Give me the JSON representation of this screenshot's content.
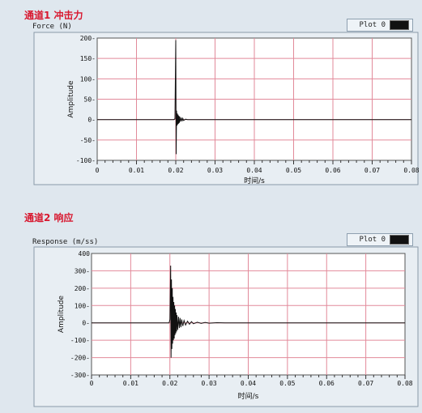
{
  "colors": {
    "grid": "#e28a9a",
    "plot_bg": "#ffffff",
    "trace": "#111111",
    "title": "#d8182f"
  },
  "chart_data": [
    {
      "type": "line",
      "channel_title": "通道1  冲击力",
      "plot_name": "Force (N)",
      "legend_label": "Plot 0",
      "xlabel": "时间/s",
      "ylabel": "Amplitude",
      "xlim": [
        0,
        0.08
      ],
      "ylim": [
        -100,
        200
      ],
      "x_ticks": [
        "0",
        "0.01",
        "0.02",
        "0.03",
        "0.04",
        "0.05",
        "0.06",
        "0.07",
        "0.08"
      ],
      "y_ticks": [
        "200-",
        "150-",
        "100-",
        "50-",
        "0-",
        "-50-",
        "-100-"
      ],
      "series": [
        {
          "x": [
            0,
            0.0195,
            0.0198,
            0.02,
            0.0201,
            0.0202,
            0.0203,
            0.0204,
            0.0205,
            0.0206,
            0.0207,
            0.0208,
            0.0209,
            0.021,
            0.0212,
            0.0214,
            0.0216,
            0.0218,
            0.022,
            0.0225,
            0.023,
            0.08
          ],
          "y": [
            0,
            0,
            2,
            195,
            -85,
            22,
            -15,
            15,
            -12,
            12,
            -10,
            9,
            -8,
            7,
            -5,
            5,
            -4,
            3,
            -2,
            1,
            0,
            0
          ]
        }
      ]
    },
    {
      "type": "line",
      "channel_title": "通道2  响应",
      "plot_name": "Response (m/ss)",
      "legend_label": "Plot 0",
      "xlabel": "时间/s",
      "ylabel": "Amplitude",
      "xlim": [
        0,
        0.08
      ],
      "ylim": [
        -300,
        400
      ],
      "x_ticks": [
        "0",
        "0.01",
        "0.02",
        "0.03",
        "0.04",
        "0.05",
        "0.06",
        "0.07",
        "0.08"
      ],
      "y_ticks": [
        "400",
        "300-",
        "200-",
        "100-",
        "0-",
        "-100-",
        "-200-",
        "-300-"
      ],
      "series": [
        {
          "x": [
            0,
            0.0198,
            0.02,
            0.0202,
            0.0203,
            0.0204,
            0.0205,
            0.0206,
            0.0207,
            0.0208,
            0.0209,
            0.021,
            0.0211,
            0.0212,
            0.0213,
            0.0214,
            0.0215,
            0.0216,
            0.0217,
            0.0218,
            0.022,
            0.0222,
            0.0224,
            0.0226,
            0.0228,
            0.023,
            0.0233,
            0.0236,
            0.024,
            0.0245,
            0.025,
            0.0255,
            0.026,
            0.027,
            0.028,
            0.029,
            0.03,
            0.032,
            0.034,
            0.08
          ],
          "y": [
            0,
            0,
            20,
            330,
            -200,
            250,
            -150,
            200,
            -120,
            150,
            -100,
            120,
            -90,
            100,
            -70,
            80,
            -60,
            60,
            -50,
            45,
            -40,
            35,
            -30,
            28,
            -25,
            20,
            -18,
            14,
            -12,
            10,
            -8,
            7,
            -5,
            4,
            -3,
            3,
            -2,
            1,
            0,
            0
          ]
        }
      ]
    }
  ]
}
